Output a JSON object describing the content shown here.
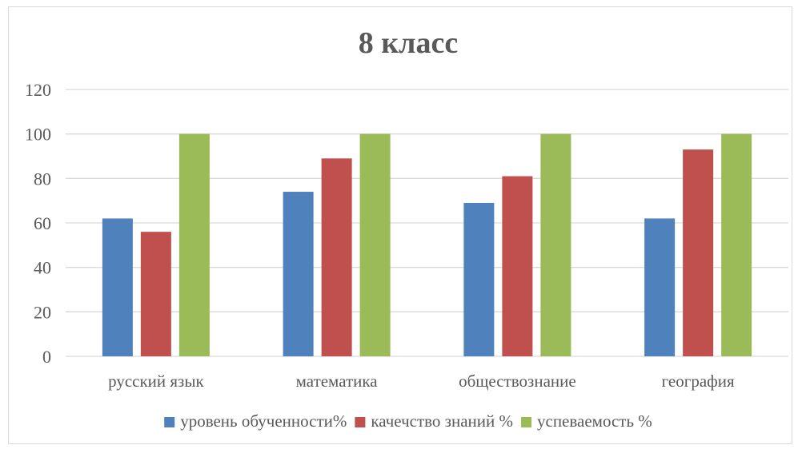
{
  "chart_data": {
    "type": "bar",
    "title": "8 класс",
    "xlabel": "",
    "ylabel": "",
    "ylim": [
      0,
      120
    ],
    "yticks": [
      0,
      20,
      40,
      60,
      80,
      100,
      120
    ],
    "grid": true,
    "legend_position": "bottom",
    "categories": [
      "русский язык",
      "математика",
      "обществознание",
      "география"
    ],
    "series": [
      {
        "name": "уровень обученности%",
        "color": "#4f81bd",
        "values": [
          62,
          74,
          69,
          62
        ]
      },
      {
        "name": "качечство знаний %",
        "color": "#c0504d",
        "values": [
          56,
          89,
          81,
          93
        ]
      },
      {
        "name": "успеваемость %",
        "color": "#9bbb59",
        "values": [
          100,
          100,
          100,
          100
        ]
      }
    ]
  }
}
